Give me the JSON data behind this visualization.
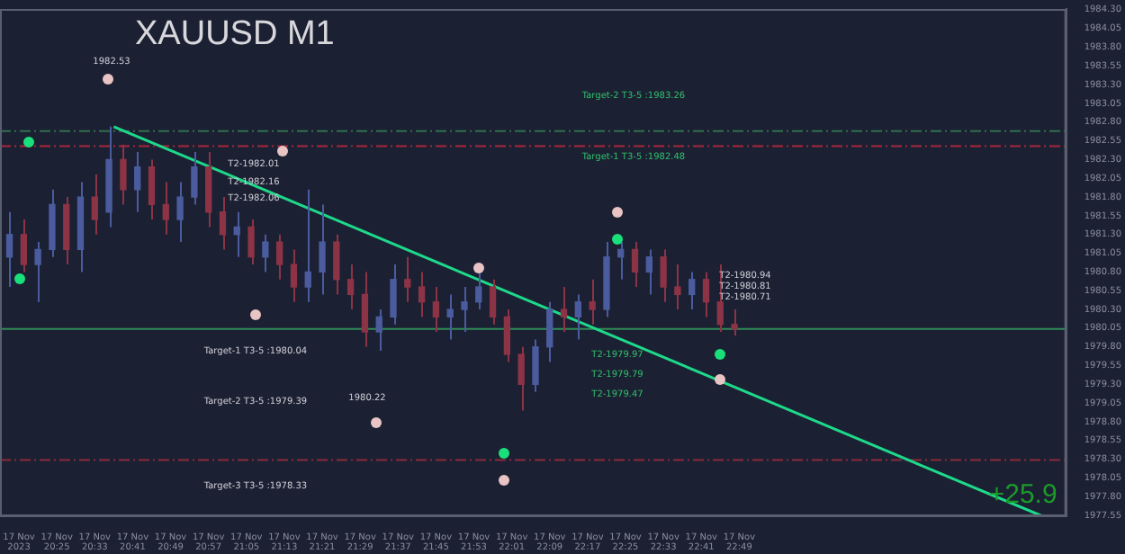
{
  "chart_data": {
    "type": "candlestick",
    "title": "XAUUSD M1",
    "xlim": [
      "2023-11-17T20:13",
      "2023-11-17T23:58"
    ],
    "ylim": [
      1977.54,
      1984.31
    ],
    "xticks": [
      {
        "value": "2023-11-17T20:17",
        "label": "17 Nov 2023"
      },
      {
        "value": "2023-11-17T20:25",
        "label": "17 Nov 20:25"
      },
      {
        "value": "2023-11-17T20:33",
        "label": "17 Nov 20:33"
      },
      {
        "value": "2023-11-17T20:41",
        "label": "17 Nov 20:41"
      },
      {
        "value": "2023-11-17T20:49",
        "label": "17 Nov 20:49"
      },
      {
        "value": "2023-11-17T20:57",
        "label": "17 Nov 20:57"
      },
      {
        "value": "2023-11-17T21:05",
        "label": "17 Nov 21:05"
      },
      {
        "value": "2023-11-17T21:13",
        "label": "17 Nov 21:13"
      },
      {
        "value": "2023-11-17T21:21",
        "label": "17 Nov 21:21"
      },
      {
        "value": "2023-11-17T21:29",
        "label": "17 Nov 21:29"
      },
      {
        "value": "2023-11-17T21:37",
        "label": "17 Nov 21:37"
      },
      {
        "value": "2023-11-17T21:45",
        "label": "17 Nov 21:45"
      },
      {
        "value": "2023-11-17T21:53",
        "label": "17 Nov 21:53"
      },
      {
        "value": "2023-11-17T22:01",
        "label": "17 Nov 22:01"
      },
      {
        "value": "2023-11-17T22:09",
        "label": "17 Nov 22:09"
      },
      {
        "value": "2023-11-17T22:17",
        "label": "17 Nov 22:17"
      },
      {
        "value": "2023-11-17T22:25",
        "label": "17 Nov 22:25"
      },
      {
        "value": "2023-11-17T22:33",
        "label": "17 Nov 22:33"
      },
      {
        "value": "2023-11-17T22:41",
        "label": "17 Nov 22:41"
      },
      {
        "value": "2023-11-17T22:49",
        "label": "17 Nov 22:49"
      }
    ],
    "yticks": [
      {
        "value": 1977.55,
        "label": "1977.55"
      },
      {
        "value": 1977.8,
        "label": "1977.80"
      },
      {
        "value": 1978.05,
        "label": "1978.05"
      },
      {
        "value": 1978.3,
        "label": "1978.30"
      },
      {
        "value": 1978.55,
        "label": "1978.55"
      },
      {
        "value": 1978.8,
        "label": "1978.80"
      },
      {
        "value": 1979.05,
        "label": "1979.05"
      },
      {
        "value": 1979.3,
        "label": "1979.30"
      },
      {
        "value": 1979.55,
        "label": "1979.55"
      },
      {
        "value": 1979.8,
        "label": "1979.80"
      },
      {
        "value": 1980.05,
        "label": "1980.05"
      },
      {
        "value": 1980.3,
        "label": "1980.30"
      },
      {
        "value": 1980.55,
        "label": "1980.55"
      },
      {
        "value": 1980.8,
        "label": "1980.80"
      },
      {
        "value": 1981.05,
        "label": "1981.05"
      },
      {
        "value": 1981.3,
        "label": "1981.30"
      },
      {
        "value": 1981.55,
        "label": "1981.55"
      },
      {
        "value": 1981.8,
        "label": "1981.80"
      },
      {
        "value": 1982.05,
        "label": "1982.05"
      },
      {
        "value": 1982.3,
        "label": "1982.30"
      },
      {
        "value": 1982.55,
        "label": "1982.55"
      },
      {
        "value": 1982.8,
        "label": "1982.80"
      },
      {
        "value": 1983.05,
        "label": "1983.05"
      },
      {
        "value": 1983.3,
        "label": "1983.30"
      },
      {
        "value": 1983.55,
        "label": "1983.55"
      },
      {
        "value": 1983.8,
        "label": "1983.80"
      },
      {
        "value": 1984.05,
        "label": "1984.05"
      },
      {
        "value": 1984.3,
        "label": "1984.30"
      }
    ],
    "series": [
      {
        "type": "candlestick",
        "x": [
          "2023-11-17T20:15",
          "2023-11-17T20:18",
          "2023-11-17T20:21",
          "2023-11-17T20:24",
          "2023-11-17T20:27",
          "2023-11-17T20:30",
          "2023-11-17T20:33",
          "2023-11-17T20:36",
          "2023-11-17T20:39",
          "2023-11-17T20:42",
          "2023-11-17T20:45",
          "2023-11-17T20:48",
          "2023-11-17T20:51",
          "2023-11-17T20:54",
          "2023-11-17T20:57",
          "2023-11-17T21:00",
          "2023-11-17T21:03",
          "2023-11-17T21:06",
          "2023-11-17T21:09",
          "2023-11-17T21:12",
          "2023-11-17T21:15",
          "2023-11-17T21:18",
          "2023-11-17T21:21",
          "2023-11-17T21:24",
          "2023-11-17T21:27",
          "2023-11-17T21:30",
          "2023-11-17T21:33",
          "2023-11-17T21:36",
          "2023-11-17T21:39",
          "2023-11-17T21:42",
          "2023-11-17T21:45",
          "2023-11-17T21:48",
          "2023-11-17T21:51",
          "2023-11-17T21:54",
          "2023-11-17T21:57",
          "2023-11-17T22:00",
          "2023-11-17T22:03",
          "2023-11-17T22:06",
          "2023-11-17T22:09",
          "2023-11-17T22:12",
          "2023-11-17T22:15",
          "2023-11-17T22:18",
          "2023-11-17T22:21",
          "2023-11-17T22:24",
          "2023-11-17T22:27",
          "2023-11-17T22:30",
          "2023-11-17T22:33",
          "2023-11-17T22:36",
          "2023-11-17T22:39",
          "2023-11-17T22:42",
          "2023-11-17T22:45",
          "2023-11-17T22:48"
        ],
        "ohlc": [
          [
            1981.0,
            1981.6,
            1980.6,
            1981.3
          ],
          [
            1981.3,
            1981.5,
            1980.8,
            1980.9
          ],
          [
            1980.9,
            1981.2,
            1980.4,
            1981.1
          ],
          [
            1981.1,
            1981.9,
            1981.0,
            1981.7
          ],
          [
            1981.7,
            1981.8,
            1980.9,
            1981.1
          ],
          [
            1981.1,
            1982.0,
            1980.8,
            1981.8
          ],
          [
            1981.8,
            1982.1,
            1981.3,
            1981.5
          ],
          [
            1981.6,
            1982.74,
            1981.4,
            1982.3
          ],
          [
            1982.3,
            1982.5,
            1981.7,
            1981.9
          ],
          [
            1981.9,
            1982.4,
            1981.6,
            1982.2
          ],
          [
            1982.2,
            1982.3,
            1981.5,
            1981.7
          ],
          [
            1981.7,
            1982.0,
            1981.3,
            1981.5
          ],
          [
            1981.5,
            1982.0,
            1981.2,
            1981.8
          ],
          [
            1981.8,
            1982.4,
            1981.7,
            1982.2
          ],
          [
            1982.2,
            1982.4,
            1981.4,
            1981.6
          ],
          [
            1981.6,
            1981.8,
            1981.1,
            1981.3
          ],
          [
            1981.3,
            1981.6,
            1981.0,
            1981.4
          ],
          [
            1981.4,
            1981.5,
            1980.9,
            1981.0
          ],
          [
            1981.0,
            1981.3,
            1980.8,
            1981.2
          ],
          [
            1981.2,
            1981.3,
            1980.7,
            1980.9
          ],
          [
            1980.9,
            1981.1,
            1980.4,
            1980.6
          ],
          [
            1980.6,
            1981.9,
            1980.4,
            1980.8
          ],
          [
            1980.8,
            1981.7,
            1980.5,
            1981.2
          ],
          [
            1981.2,
            1981.3,
            1980.5,
            1980.7
          ],
          [
            1980.7,
            1980.9,
            1980.3,
            1980.5
          ],
          [
            1980.5,
            1980.8,
            1979.8,
            1980.0
          ],
          [
            1980.0,
            1980.3,
            1979.75,
            1980.2
          ],
          [
            1980.2,
            1980.9,
            1980.1,
            1980.7
          ],
          [
            1980.7,
            1981.0,
            1980.4,
            1980.6
          ],
          [
            1980.6,
            1980.8,
            1980.2,
            1980.4
          ],
          [
            1980.4,
            1980.6,
            1980.0,
            1980.2
          ],
          [
            1980.2,
            1980.5,
            1979.9,
            1980.3
          ],
          [
            1980.3,
            1980.6,
            1980.0,
            1980.4
          ],
          [
            1980.4,
            1980.8,
            1980.3,
            1980.6
          ],
          [
            1980.6,
            1980.7,
            1980.1,
            1980.2
          ],
          [
            1980.2,
            1980.3,
            1979.6,
            1979.7
          ],
          [
            1979.7,
            1979.8,
            1978.95,
            1979.3
          ],
          [
            1979.3,
            1979.9,
            1979.2,
            1979.8
          ],
          [
            1979.8,
            1980.4,
            1979.6,
            1980.3
          ],
          [
            1980.3,
            1980.6,
            1980.0,
            1980.2
          ],
          [
            1980.2,
            1980.5,
            1979.9,
            1980.4
          ],
          [
            1980.4,
            1980.7,
            1980.1,
            1980.3
          ],
          [
            1980.3,
            1981.2,
            1980.2,
            1981.0
          ],
          [
            1981.0,
            1981.2,
            1980.7,
            1981.1
          ],
          [
            1981.1,
            1981.2,
            1980.6,
            1980.8
          ],
          [
            1980.8,
            1981.1,
            1980.5,
            1981.0
          ],
          [
            1981.0,
            1981.1,
            1980.4,
            1980.6
          ],
          [
            1980.6,
            1980.9,
            1980.3,
            1980.5
          ],
          [
            1980.5,
            1980.8,
            1980.3,
            1980.7
          ],
          [
            1980.7,
            1980.8,
            1980.2,
            1980.4
          ],
          [
            1980.4,
            1980.9,
            1980.0,
            1980.1
          ],
          [
            1980.1,
            1980.3,
            1979.95,
            1980.04
          ]
        ],
        "colors": [
          "#4a5c9e",
          "#8c3346",
          "#4a5c9e",
          "#4a5c9e",
          "#8c3346",
          "#4a5c9e",
          "#8c3346",
          "#4a5c9e",
          "#8c3346",
          "#4a5c9e",
          "#8c3346",
          "#8c3346",
          "#4a5c9e",
          "#4a5c9e",
          "#8c3346",
          "#8c3346",
          "#4a5c9e",
          "#8c3346",
          "#4a5c9e",
          "#8c3346",
          "#8c3346",
          "#4a5c9e",
          "#4a5c9e",
          "#8c3346",
          "#8c3346",
          "#8c3346",
          "#4a5c9e",
          "#4a5c9e",
          "#8c3346",
          "#8c3346",
          "#8c3346",
          "#4a5c9e",
          "#4a5c9e",
          "#4a5c9e",
          "#8c3346",
          "#8c3346",
          "#8c3346",
          "#4a5c9e",
          "#4a5c9e",
          "#8c3346",
          "#4a5c9e",
          "#8c3346",
          "#4a5c9e",
          "#4a5c9e",
          "#8c3346",
          "#4a5c9e",
          "#8c3346",
          "#8c3346",
          "#4a5c9e",
          "#8c3346",
          "#8c3346",
          "#8c3346"
        ]
      },
      {
        "type": "line",
        "color": "#1ed98a",
        "x": [
          "2023-11-17T20:37",
          "2023-11-17T23:53"
        ],
        "values": [
          1982.74,
          1977.54
        ]
      }
    ],
    "ref_lines": [
      {
        "axis": "y",
        "value": 1980.04,
        "color": "#2e8b57",
        "line_style": "solid"
      },
      {
        "axis": "y",
        "value": 1982.48,
        "color": "#a8263a",
        "line_style": "dashed"
      },
      {
        "axis": "y",
        "value": 1982.68,
        "color": "#2f6f4f",
        "line_style": "dashed"
      },
      {
        "axis": "y",
        "value": 1978.29,
        "color": "#8a2a3a",
        "line_style": "dashed"
      }
    ],
    "annotations": [
      "1982.53",
      "1980.22",
      "T2-1982.01",
      "T2-1982.16",
      "T2-1982.06",
      "Target-2 T3-5 :1983.26",
      "Target-1 T3-5 :1982.48",
      "Target-1 T3-5 :1980.04",
      "Target-2 T3-5 :1979.39",
      "Target-3 T3-5 :1978.33",
      "T2-1980.94",
      "T2-1980.81",
      "T2-1980.71",
      "T2-1979.97",
      "T2-1979.79",
      "T2-1979.47",
      "+25.9"
    ]
  }
}
